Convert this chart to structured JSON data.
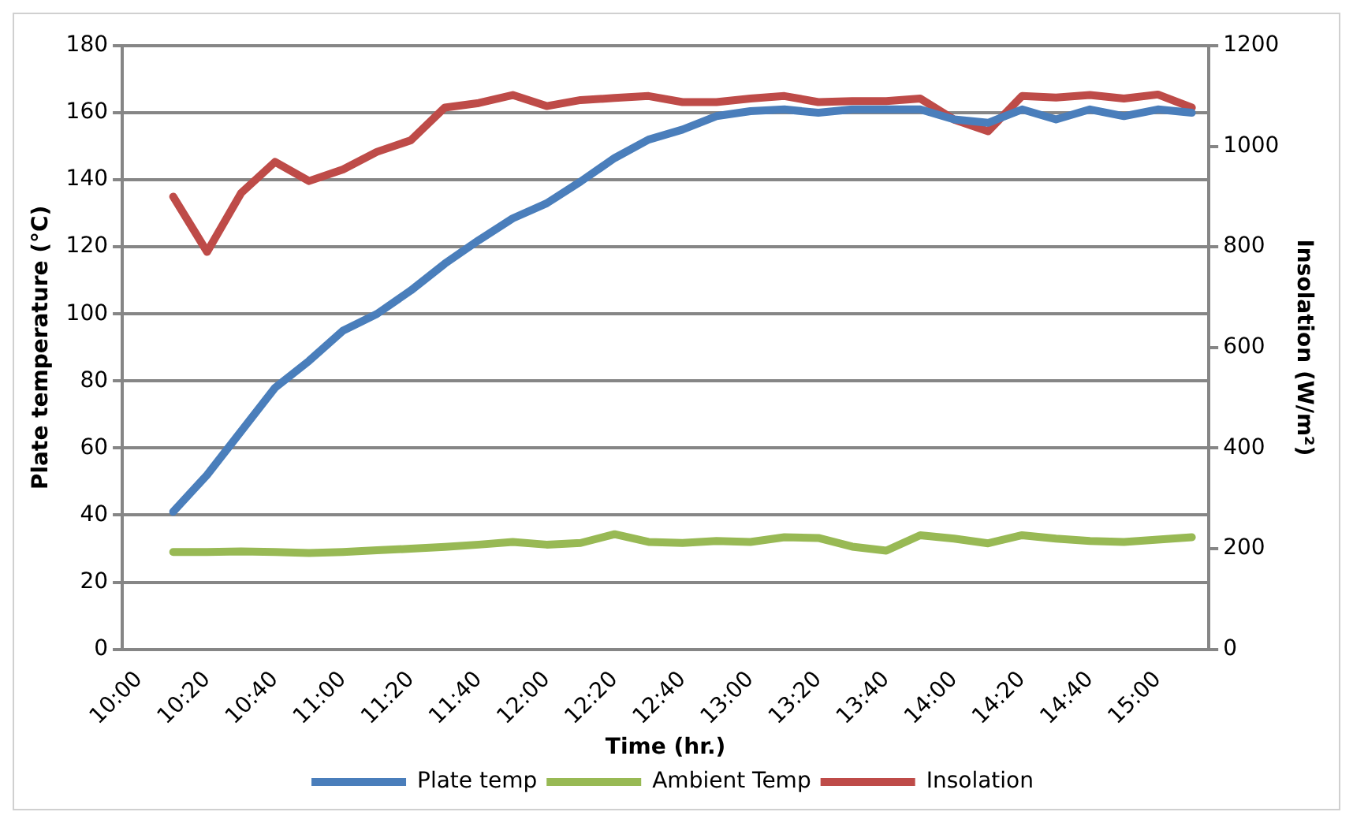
{
  "chart_data": {
    "type": "line",
    "xlabel": "Time (hr.)",
    "ylabel": "Plate temperature (°C)",
    "y2label": "Insolation (W/m²)",
    "categories": [
      "10:00",
      null,
      "10:20",
      null,
      "10:40",
      null,
      "11:00",
      null,
      "11:20",
      null,
      "11:40",
      null,
      "12:00",
      null,
      "12:20",
      null,
      "12:40",
      null,
      "13:00",
      null,
      "13:20",
      null,
      "13:40",
      null,
      "14:00",
      null,
      "14:20",
      null,
      "14:40",
      null,
      "15:00",
      null
    ],
    "series": [
      {
        "name": "Plate temp",
        "color": "#4a7ebb",
        "values": [
          null,
          41,
          52,
          65,
          78,
          86,
          95,
          100,
          107,
          115,
          122,
          128.5,
          133,
          139.5,
          146.5,
          152,
          155,
          159,
          160.5,
          161,
          160,
          161,
          161,
          161,
          158,
          157,
          161,
          158,
          161,
          159,
          161,
          160
        ]
      },
      {
        "name": "Ambient Temp",
        "color": "#98b954",
        "values": [
          null,
          29,
          29,
          29.2,
          29,
          28.7,
          29,
          29.5,
          30,
          30.5,
          31.2,
          32,
          31.2,
          31.7,
          34.3,
          32,
          31.7,
          32.3,
          32,
          33.4,
          33.2,
          30.6,
          29.4,
          34,
          33,
          31.6,
          34,
          33,
          32.3,
          32,
          32.7,
          33.4
        ]
      },
      {
        "name": "Insolation",
        "color": "#be4b48",
        "axis": "y2",
        "values": [
          null,
          900,
          790,
          907,
          969,
          931,
          954,
          989,
          1012,
          1077,
          1086,
          1102,
          1080,
          1092,
          1096,
          1100,
          1088,
          1088,
          1095,
          1100,
          1088,
          1090,
          1090,
          1095,
          1053,
          1030,
          1100,
          1097,
          1102,
          1095,
          1103,
          1077
        ]
      }
    ],
    "ylim": [
      0,
      180
    ],
    "yticks": [
      0,
      20,
      40,
      60,
      80,
      100,
      120,
      140,
      160,
      180
    ],
    "y2lim": [
      0,
      1200
    ],
    "y2ticks": [
      0,
      200,
      400,
      600,
      800,
      1000,
      1200
    ],
    "grid": "y",
    "legend": "bottom",
    "marker": "none",
    "line_style": "solid"
  }
}
